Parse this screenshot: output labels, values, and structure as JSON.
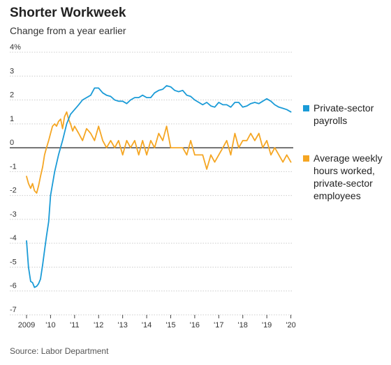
{
  "header": {
    "title": "Shorter Workweek",
    "subtitle": "Change from a year earlier"
  },
  "footer": {
    "source": "Source: Labor Department"
  },
  "colors": {
    "payrolls": "#1a9bd7",
    "hours": "#f5a623",
    "grid": "#cccccc",
    "zero": "#222222"
  },
  "chart_data": {
    "type": "line",
    "title": "Shorter Workweek",
    "subtitle": "Change from a year earlier",
    "ylim": [
      -7,
      4
    ],
    "xlim": [
      2009,
      2020.1
    ],
    "y_ticks": [
      {
        "value": 4,
        "label": "4%"
      },
      {
        "value": 3,
        "label": "3"
      },
      {
        "value": 2,
        "label": "2"
      },
      {
        "value": 1,
        "label": "1"
      },
      {
        "value": 0,
        "label": "0"
      },
      {
        "value": -1,
        "label": "-1"
      },
      {
        "value": -2,
        "label": "-2"
      },
      {
        "value": -3,
        "label": "-3"
      },
      {
        "value": -4,
        "label": "-4"
      },
      {
        "value": -5,
        "label": "-5"
      },
      {
        "value": -6,
        "label": "-6"
      },
      {
        "value": -7,
        "label": "-7"
      }
    ],
    "x_ticks": [
      {
        "value": 2009,
        "label": "2009"
      },
      {
        "value": 2010,
        "label": "'10"
      },
      {
        "value": 2011,
        "label": "'11"
      },
      {
        "value": 2012,
        "label": "'12"
      },
      {
        "value": 2013,
        "label": "'13"
      },
      {
        "value": 2014,
        "label": "'14"
      },
      {
        "value": 2015,
        "label": "'15"
      },
      {
        "value": 2016,
        "label": "'16"
      },
      {
        "value": 2017,
        "label": "'17"
      },
      {
        "value": 2018,
        "label": "'18"
      },
      {
        "value": 2019,
        "label": "'19"
      },
      {
        "value": 2020,
        "label": "'20"
      }
    ],
    "grid": true,
    "legend_position": "right",
    "series": [
      {
        "name": "Private-sector payrolls",
        "legend_lines": [
          "Private-sector",
          "payrolls"
        ],
        "color": "#1a9bd7",
        "x": [
          2009.0,
          2009.08,
          2009.17,
          2009.25,
          2009.33,
          2009.42,
          2009.5,
          2009.58,
          2009.67,
          2009.75,
          2009.83,
          2009.92,
          2010.0,
          2010.17,
          2010.33,
          2010.5,
          2010.67,
          2010.83,
          2011.0,
          2011.17,
          2011.33,
          2011.5,
          2011.67,
          2011.83,
          2012.0,
          2012.17,
          2012.33,
          2012.5,
          2012.67,
          2012.83,
          2013.0,
          2013.17,
          2013.33,
          2013.5,
          2013.67,
          2013.83,
          2014.0,
          2014.17,
          2014.33,
          2014.5,
          2014.67,
          2014.83,
          2015.0,
          2015.17,
          2015.33,
          2015.5,
          2015.67,
          2015.83,
          2016.0,
          2016.17,
          2016.33,
          2016.5,
          2016.67,
          2016.83,
          2017.0,
          2017.17,
          2017.33,
          2017.5,
          2017.67,
          2017.83,
          2018.0,
          2018.17,
          2018.33,
          2018.5,
          2018.67,
          2018.83,
          2019.0,
          2019.17,
          2019.33,
          2019.5,
          2019.67,
          2019.83,
          2020.0
        ],
        "values": [
          -3.9,
          -5.0,
          -5.6,
          -5.65,
          -5.85,
          -5.8,
          -5.7,
          -5.5,
          -4.9,
          -4.3,
          -3.7,
          -3.1,
          -2.0,
          -1.0,
          -0.3,
          0.3,
          1.0,
          1.4,
          1.6,
          1.8,
          2.0,
          2.1,
          2.2,
          2.5,
          2.5,
          2.3,
          2.2,
          2.15,
          2.0,
          1.95,
          1.95,
          1.85,
          2.0,
          2.1,
          2.1,
          2.2,
          2.1,
          2.1,
          2.3,
          2.4,
          2.45,
          2.6,
          2.55,
          2.4,
          2.35,
          2.4,
          2.2,
          2.15,
          2.0,
          1.9,
          1.8,
          1.9,
          1.75,
          1.7,
          1.9,
          1.8,
          1.8,
          1.7,
          1.9,
          1.9,
          1.7,
          1.75,
          1.85,
          1.9,
          1.85,
          1.95,
          2.05,
          1.95,
          1.8,
          1.7,
          1.65,
          1.6,
          1.5
        ]
      },
      {
        "name": "Average weekly hours worked, private-sector employees",
        "legend_lines": [
          "Average weekly",
          "hours worked,",
          "private-sector",
          "employees"
        ],
        "color": "#f5a623",
        "x": [
          2009.0,
          2009.08,
          2009.17,
          2009.25,
          2009.33,
          2009.42,
          2009.5,
          2009.58,
          2009.67,
          2009.75,
          2009.83,
          2009.92,
          2010.0,
          2010.08,
          2010.17,
          2010.25,
          2010.33,
          2010.42,
          2010.5,
          2010.58,
          2010.67,
          2010.75,
          2010.83,
          2010.92,
          2011.0,
          2011.17,
          2011.33,
          2011.5,
          2011.67,
          2011.83,
          2012.0,
          2012.17,
          2012.33,
          2012.5,
          2012.67,
          2012.83,
          2013.0,
          2013.17,
          2013.33,
          2013.5,
          2013.67,
          2013.83,
          2014.0,
          2014.17,
          2014.33,
          2014.5,
          2014.67,
          2014.83,
          2015.0,
          2015.17,
          2015.33,
          2015.5,
          2015.67,
          2015.83,
          2016.0,
          2016.17,
          2016.33,
          2016.5,
          2016.67,
          2016.83,
          2017.0,
          2017.17,
          2017.33,
          2017.5,
          2017.67,
          2017.83,
          2018.0,
          2018.17,
          2018.33,
          2018.5,
          2018.67,
          2018.83,
          2019.0,
          2019.17,
          2019.33,
          2019.5,
          2019.67,
          2019.83,
          2020.0
        ],
        "values": [
          -1.2,
          -1.5,
          -1.7,
          -1.5,
          -1.8,
          -1.9,
          -1.6,
          -1.2,
          -0.8,
          -0.3,
          0.0,
          0.3,
          0.6,
          0.9,
          1.0,
          0.9,
          1.1,
          1.2,
          0.8,
          1.3,
          1.5,
          1.2,
          1.0,
          0.7,
          0.9,
          0.6,
          0.3,
          0.8,
          0.6,
          0.3,
          0.9,
          0.3,
          0.0,
          0.3,
          0.0,
          0.3,
          -0.3,
          0.3,
          0.0,
          0.3,
          -0.3,
          0.3,
          -0.3,
          0.3,
          0.0,
          0.6,
          0.3,
          0.9,
          0.0,
          0.0,
          0.0,
          0.0,
          -0.3,
          0.3,
          -0.3,
          -0.3,
          -0.3,
          -0.9,
          -0.3,
          -0.6,
          -0.3,
          0.0,
          0.3,
          -0.3,
          0.6,
          0.0,
          0.3,
          0.3,
          0.6,
          0.3,
          0.6,
          0.0,
          0.3,
          -0.3,
          0.0,
          -0.3,
          -0.6,
          -0.3,
          -0.6
        ]
      }
    ]
  }
}
